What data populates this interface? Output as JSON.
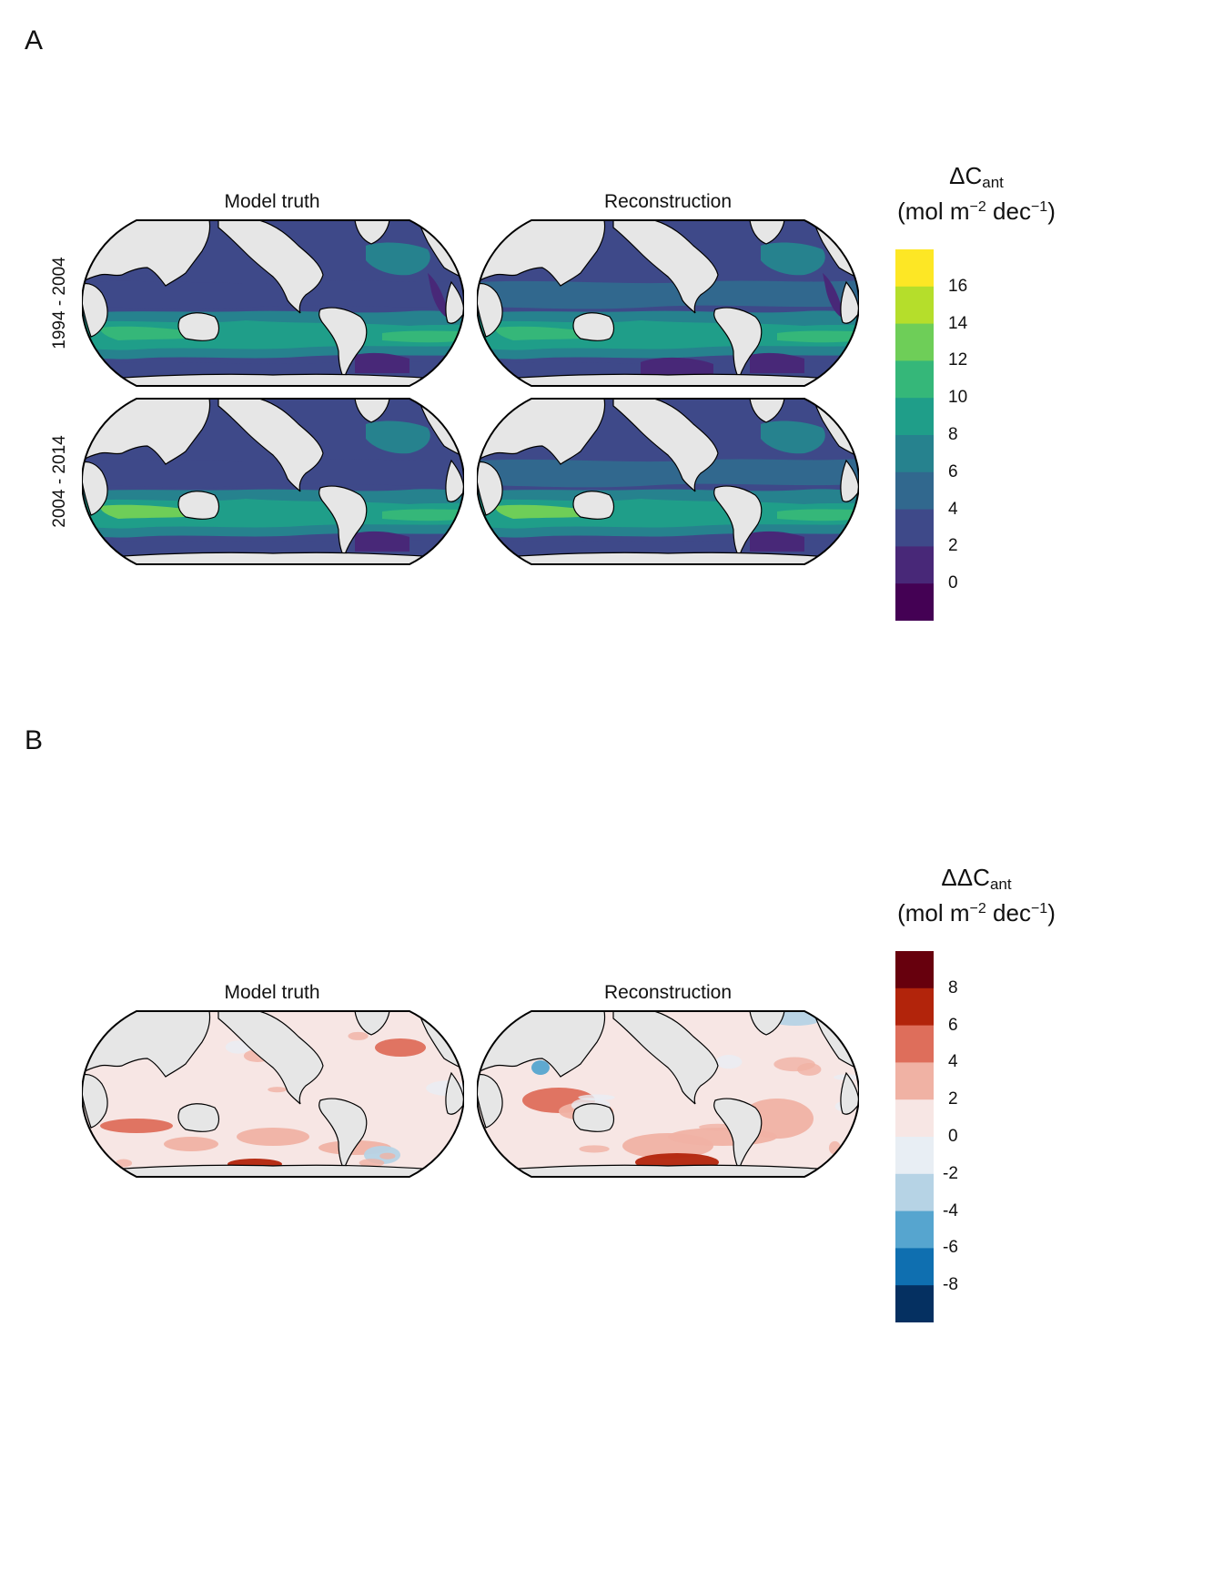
{
  "panels": {
    "a": {
      "letter": "A",
      "col_titles": [
        "Model truth",
        "Reconstruction"
      ],
      "row_labels": [
        "1994 - 2004",
        "2004 - 2014"
      ],
      "legend": {
        "title_symbol": "ΔC",
        "title_sub": "ant",
        "units_open": "(mol m",
        "units_sup1": "−2",
        "units_mid": " dec",
        "units_sup2": "−1",
        "units_close": ")",
        "ticks": [
          "16",
          "14",
          "12",
          "10",
          "8",
          "6",
          "4",
          "2",
          "0"
        ],
        "colors": [
          "#fde725",
          "#b5de2b",
          "#6ece58",
          "#35b779",
          "#1f9e89",
          "#26828e",
          "#31688e",
          "#3e4989",
          "#482878",
          "#440154"
        ]
      }
    },
    "b": {
      "letter": "B",
      "col_titles": [
        "Model truth",
        "Reconstruction"
      ],
      "legend": {
        "title_symbol": "ΔΔC",
        "title_sub": "ant",
        "units_open": "(mol m",
        "units_sup1": "−2",
        "units_mid": " dec",
        "units_sup2": "−1",
        "units_close": ")",
        "ticks": [
          "8",
          "6",
          "4",
          "2",
          "0",
          "-2",
          "-4",
          "-6",
          "-8"
        ],
        "colors": [
          "#67000d",
          "#b2240b",
          "#de6e5b",
          "#f0b2a4",
          "#f7e6e4",
          "#e8eef4",
          "#b6d3e5",
          "#56a5cf",
          "#0f6fb0",
          "#053061"
        ]
      }
    }
  },
  "map_colors": {
    "land": "#e6e6e6",
    "ocean_a_base": "#3e4989",
    "ocean_b_base": "#f7e6e4"
  }
}
